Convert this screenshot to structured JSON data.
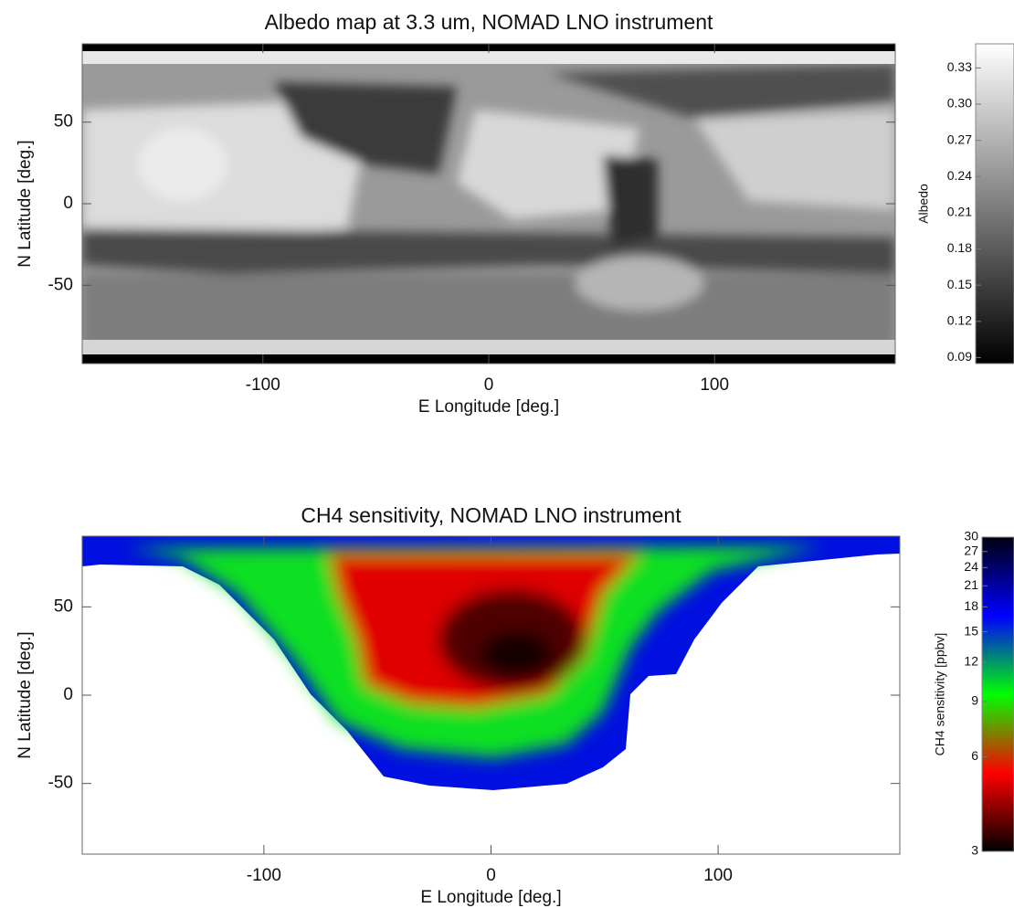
{
  "chart_data": [
    {
      "type": "heatmap",
      "title": "Albedo map at 3.3 um, NOMAD LNO instrument",
      "xlabel": "E Longitude [deg.]",
      "ylabel": "N Latitude [deg.]",
      "xlim": [
        -180,
        180
      ],
      "ylim": [
        -98,
        98
      ],
      "xticks": [
        -100,
        0,
        100
      ],
      "yticks": [
        -50,
        0,
        50
      ],
      "colorbar": {
        "label": "Albedo",
        "lim": [
          0.085,
          0.35
        ],
        "log": false,
        "colors": [
          "#000000",
          "#ffffff"
        ],
        "ticks": [
          0.09,
          0.12,
          0.15,
          0.18,
          0.21,
          0.24,
          0.27,
          {
            "value": 0.3,
            "label": "0.30"
          },
          0.33
        ]
      }
    },
    {
      "type": "heatmap",
      "title": "CH4 sensitivity, NOMAD LNO instrument",
      "xlabel": "E Longitude [deg.]",
      "ylabel": "N Latitude [deg.]",
      "xlim": [
        -180,
        180
      ],
      "ylim": [
        -90,
        90
      ],
      "xticks": [
        -100,
        0,
        100
      ],
      "yticks": [
        -50,
        0,
        50
      ],
      "colorbar": {
        "label": "CH4 sensitivity [ppbv]",
        "lim": [
          3,
          30
        ],
        "log": true,
        "colors": [
          "#000000",
          "#ff0000",
          "#00ff00",
          "#0000ff",
          "#000010"
        ],
        "ticks": [
          3,
          6,
          9,
          12,
          15,
          18,
          21,
          24,
          27,
          30
        ]
      }
    }
  ]
}
